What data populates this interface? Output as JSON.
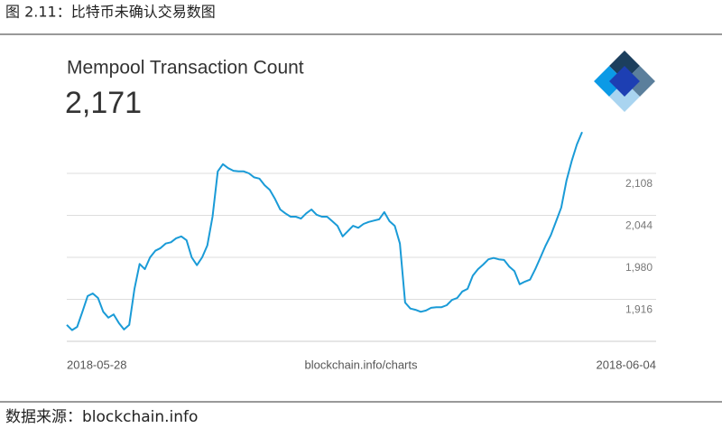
{
  "caption": "图 2.11：比特币未确认交易数图",
  "source_note": "数据来源：blockchain.info",
  "chart_data": {
    "type": "line",
    "title": "Mempool Transaction Count",
    "headline": "2,171",
    "x_labels": [
      "2018-05-28",
      "2018-06-04"
    ],
    "source": "blockchain.info/charts",
    "ylim": [
      1852,
      2180
    ],
    "yticks": [
      {
        "value": 1916,
        "label": "1,916"
      },
      {
        "value": 1980,
        "label": "1,980"
      },
      {
        "value": 2044,
        "label": "2,044"
      },
      {
        "value": 2108,
        "label": "2,108"
      }
    ],
    "grid": true,
    "series": [
      {
        "color": "#1a9bd7",
        "values": [
          1877,
          1869,
          1874,
          1897,
          1921,
          1925,
          1918,
          1897,
          1888,
          1893,
          1880,
          1870,
          1877,
          1932,
          1970,
          1962,
          1980,
          1990,
          1994,
          2001,
          2003,
          2009,
          2012,
          2006,
          1980,
          1968,
          1980,
          1998,
          2042,
          2111,
          2122,
          2116,
          2112,
          2111,
          2111,
          2108,
          2102,
          2100,
          2090,
          2083,
          2069,
          2053,
          2047,
          2042,
          2042,
          2039,
          2047,
          2053,
          2045,
          2042,
          2042,
          2035,
          2028,
          2012,
          2020,
          2028,
          2025,
          2031,
          2034,
          2036,
          2038,
          2049,
          2035,
          2028,
          2001,
          1911,
          1902,
          1900,
          1897,
          1899,
          1903,
          1904,
          1904,
          1907,
          1915,
          1918,
          1928,
          1932,
          1952,
          1962,
          1969,
          1977,
          1979,
          1977,
          1976,
          1966,
          1959,
          1939,
          1943,
          1946,
          1962,
          1980,
          1998,
          2014,
          2035,
          2056,
          2097,
          2127,
          2152,
          2171
        ]
      }
    ]
  }
}
